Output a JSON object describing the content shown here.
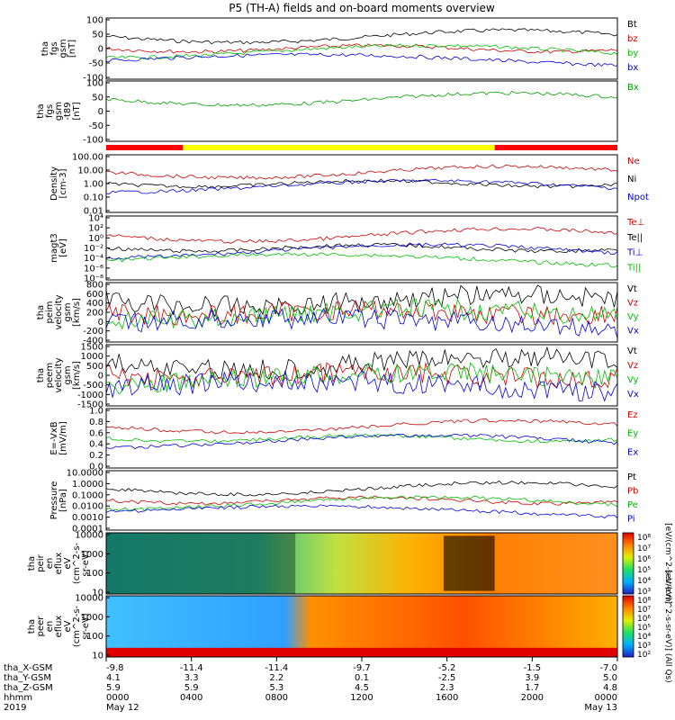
{
  "title": "P5 (TH-A) fields and on-board moments overview",
  "chart_data": {
    "type": "line",
    "panels": [
      {
        "id": "fgs",
        "ylabel": [
          "tha",
          "fgs",
          "gsm",
          "[nT]"
        ],
        "yticks": [
          "100",
          "50",
          "0",
          "-50",
          "-100"
        ],
        "legend": [
          {
            "name": "Bt",
            "color": "#000000"
          },
          {
            "name": "bz",
            "color": "#d00000"
          },
          {
            "name": "by",
            "color": "#00c000"
          },
          {
            "name": "bx",
            "color": "#0000e0"
          }
        ]
      },
      {
        "id": "fgs_dsl",
        "ylabel": [
          "tha",
          "fgs",
          "gsm",
          "-t89",
          "[nT]"
        ],
        "yticks": [
          "100",
          "50",
          "0",
          "-50",
          "-100"
        ],
        "legend": [
          {
            "name": "Bx",
            "color": "#00a000"
          }
        ]
      },
      {
        "id": "density",
        "ylabel": [
          "Density",
          "[cm-3]"
        ],
        "yticks": [
          "100.00",
          "10.00",
          "1.00",
          "0.10",
          "0.01"
        ],
        "legend": [
          {
            "name": "Ne",
            "color": "#d00000"
          },
          {
            "name": "Ni",
            "color": "#000000"
          },
          {
            "name": "Npot",
            "color": "#0000e0"
          }
        ]
      },
      {
        "id": "temp",
        "ylabel": [
          "magt3",
          "[eV]"
        ],
        "yticks": [
          "10⁴",
          "10²",
          "10⁰",
          "10⁻²",
          "10⁻⁴",
          "10⁻⁶",
          "10⁻⁸"
        ],
        "legend": [
          {
            "name": "Te⊥",
            "color": "#d00000"
          },
          {
            "name": "Te||",
            "color": "#000000"
          },
          {
            "name": "Ti⊥",
            "color": "#0000e0"
          },
          {
            "name": "Ti||",
            "color": "#00c000"
          }
        ]
      },
      {
        "id": "peim_v",
        "ylabel": [
          "tha",
          "peim",
          "velocity",
          "gsm",
          "[km/s]"
        ],
        "yticks": [
          "800",
          "600",
          "400",
          "200",
          "0",
          "-200",
          "-400"
        ],
        "legend": [
          {
            "name": "Vt",
            "color": "#000000"
          },
          {
            "name": "Vz",
            "color": "#d00000"
          },
          {
            "name": "Vy",
            "color": "#00c000"
          },
          {
            "name": "Vx",
            "color": "#0000e0"
          }
        ]
      },
      {
        "id": "peem_v",
        "ylabel": [
          "tha",
          "peem",
          "velocity",
          "gsm",
          "[km/s]"
        ],
        "yticks": [
          "1500",
          "1000",
          "500",
          "0",
          "-500",
          "-1000",
          "-1500"
        ],
        "legend": [
          {
            "name": "Vt",
            "color": "#000000"
          },
          {
            "name": "Vz",
            "color": "#d00000"
          },
          {
            "name": "Vy",
            "color": "#00c000"
          },
          {
            "name": "Vx",
            "color": "#0000e0"
          }
        ]
      },
      {
        "id": "efield",
        "ylabel": [
          "E=-VxB",
          "[mV/m]"
        ],
        "yticks": [
          "1.0",
          "0.8",
          "0.6",
          "0.4",
          "0.2",
          "0.0"
        ],
        "legend": [
          {
            "name": "Ez",
            "color": "#d00000"
          },
          {
            "name": "Ey",
            "color": "#00c000"
          },
          {
            "name": "Ex",
            "color": "#0000e0"
          }
        ]
      },
      {
        "id": "pressure",
        "ylabel": [
          "Pressure",
          "[nPa]"
        ],
        "yticks": [
          "10.0000",
          "1.0000",
          "0.1000",
          "0.0100",
          "0.0010",
          "0.0001"
        ],
        "legend": [
          {
            "name": "Pt",
            "color": "#000000"
          },
          {
            "name": "Pb",
            "color": "#d00000"
          },
          {
            "name": "Pe",
            "color": "#00c000"
          },
          {
            "name": "Pi",
            "color": "#0000e0"
          }
        ]
      },
      {
        "id": "peir",
        "ylabel": [
          "tha",
          "peir",
          "en",
          "eflux",
          "eV",
          "(cm^2-s-",
          "sr-eV)"
        ],
        "yticks": [
          "10000",
          "1000",
          "100",
          "10"
        ],
        "colorbar": {
          "ticks": [
            "10⁸",
            "10⁷",
            "10⁶",
            "10⁵",
            "10⁴",
            "10³"
          ],
          "label": "[eV/(cm^2-s-sr-eV)]"
        }
      },
      {
        "id": "peer",
        "ylabel": [
          "tha",
          "peer",
          "en",
          "eflux",
          "eV",
          "(cm^2-s-",
          "sr-eV)"
        ],
        "yticks": [
          "10000",
          "1000",
          "100",
          "10"
        ],
        "colorbar": {
          "ticks": [
            "10⁸",
            "10⁷",
            "10⁶",
            "10⁵",
            "10⁴",
            "10³",
            "10²"
          ],
          "label": "[eV/(cm^2-s-sr-eV)] (All Qs)"
        }
      }
    ],
    "x_axis": {
      "row_labels": [
        "tha_X-GSM",
        "tha_Y-GSM",
        "tha_Z-GSM",
        "hhmm",
        "2019"
      ],
      "columns": [
        {
          "vals": [
            "-9.8",
            "4.1",
            "5.9",
            "0000",
            "May 12"
          ]
        },
        {
          "vals": [
            "-11.4",
            "3.3",
            "5.9",
            "0400",
            ""
          ]
        },
        {
          "vals": [
            "-11.4",
            "2.2",
            "5.3",
            "0800",
            ""
          ]
        },
        {
          "vals": [
            "-9.7",
            "0.1",
            "4.5",
            "1200",
            ""
          ]
        },
        {
          "vals": [
            "-5.2",
            "-2.5",
            "2.3",
            "1600",
            ""
          ]
        },
        {
          "vals": [
            "-1.5",
            "3.9",
            "1.7",
            "2000",
            ""
          ]
        },
        {
          "vals": [
            "-7.0",
            "5.0",
            "4.8",
            "0000",
            "May 13"
          ]
        }
      ]
    },
    "mode_bar": [
      {
        "from": 0,
        "to": 0.15,
        "color": "#ff0000"
      },
      {
        "from": 0.15,
        "to": 0.76,
        "color": "#ffff00"
      },
      {
        "from": 0.76,
        "to": 1,
        "color": "#ff0000"
      }
    ]
  }
}
